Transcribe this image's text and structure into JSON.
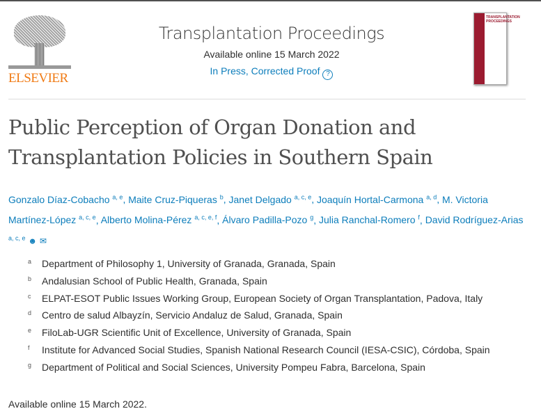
{
  "publisher": {
    "logo_text": "ELSEVIER"
  },
  "header": {
    "journal": "Transplantation Proceedings",
    "available": "Available online 15 March 2022",
    "status": "In Press, Corrected Proof",
    "help_icon": "?",
    "cover_text": "TRANSPLANTATION PROCEEDINGS"
  },
  "title": "Public Perception of Organ Donation and Transplantation Policies in Southern Spain",
  "authors": [
    {
      "name": "Gonzalo Díaz-Cobacho",
      "sup": "a, e"
    },
    {
      "name": "Maite Cruz-Piqueras",
      "sup": "b"
    },
    {
      "name": "Janet Delgado",
      "sup": "a, c, e"
    },
    {
      "name": "Joaquín Hortal-Carmona",
      "sup": "a, d"
    },
    {
      "name": "M. Victoria Martínez-López",
      "sup": "a, c, e"
    },
    {
      "name": "Alberto Molina-Pérez",
      "sup": "a, c, e, f"
    },
    {
      "name": "Álvaro Padilla-Pozo",
      "sup": "g"
    },
    {
      "name": "Julia Ranchal-Romero",
      "sup": "f"
    },
    {
      "name": "David Rodríguez-Arias",
      "sup": "a, c, e"
    }
  ],
  "author_icons": {
    "person": "person-icon",
    "email": "email-icon"
  },
  "affiliations": [
    {
      "label": "a",
      "text": "Department of Philosophy 1, University of Granada, Granada, Spain"
    },
    {
      "label": "b",
      "text": "Andalusian School of Public Health, Granada, Spain"
    },
    {
      "label": "c",
      "text": "ELPAT-ESOT Public Issues Working Group, European Society of Organ Transplantation, Padova, Italy"
    },
    {
      "label": "d",
      "text": "Centro de salud Albayzín, Servicio Andaluz de Salud, Granada, Spain"
    },
    {
      "label": "e",
      "text": "FiloLab-UGR Scientific Unit of Excellence, University of Granada, Spain"
    },
    {
      "label": "f",
      "text": "Institute for Advanced Social Studies, Spanish National Research Council (IESA-CSIC), Córdoba, Spain"
    },
    {
      "label": "g",
      "text": "Department of Political and Social Sciences, University Pompeu Fabra, Barcelona, Spain"
    }
  ],
  "footer": "Available online 15 March 2022."
}
